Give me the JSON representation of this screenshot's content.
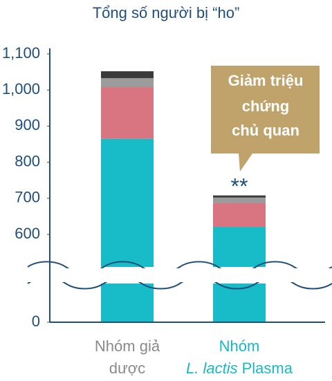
{
  "chart_data": {
    "type": "stacked_bar",
    "title": "Tổng số người bị “ho”",
    "categories": [
      [
        [
          {
            "text": "Nhóm giả"
          }
        ],
        [
          {
            "text": "dược"
          }
        ]
      ],
      [
        [
          {
            "text": "Nhóm"
          }
        ],
        [
          {
            "text": "L. lactis",
            "italic": true
          },
          {
            "text": "Plasma"
          }
        ]
      ]
    ],
    "category_colors": [
      "#8a8a8a",
      "#17b9c6"
    ],
    "series": [
      {
        "color": "#17bcc8",
        "values": [
          865,
          621
        ]
      },
      {
        "color": "#d87581",
        "values": [
          143,
          66
        ]
      },
      {
        "color": "#9b9b9b",
        "values": [
          25,
          15
        ]
      },
      {
        "color": "#3b3b3b",
        "values": [
          19,
          6
        ]
      }
    ],
    "ylim": [
      0,
      1100
    ],
    "yticks": [
      0,
      600,
      700,
      800,
      900,
      {
        "value": 1000,
        "label": "1,000"
      },
      {
        "value": 1100,
        "label": "1,100"
      }
    ],
    "axis_break": true,
    "annotations": {
      "callout": [
        "Giảm triệu",
        "chứng",
        "chủ quan"
      ],
      "significance": "**"
    }
  }
}
